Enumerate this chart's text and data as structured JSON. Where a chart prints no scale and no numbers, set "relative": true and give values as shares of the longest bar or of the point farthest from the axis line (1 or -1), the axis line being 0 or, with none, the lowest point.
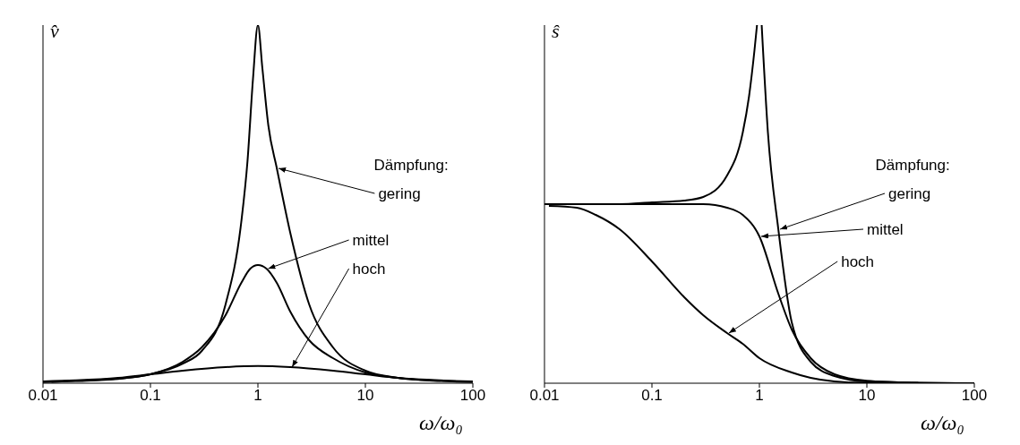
{
  "chart_data": [
    {
      "type": "line",
      "relative": true,
      "log": "x",
      "xlim": [
        0.01,
        100
      ],
      "xticks": [
        0.01,
        0.1,
        1,
        10,
        100
      ],
      "tick_labels": "x",
      "ylabel": "v̂",
      "xlabel": "ω/ω₀",
      "marker": "none",
      "line_style": "solid",
      "annotations": [
        "Dämpfung:",
        {
          "text": "gering",
          "x": 1.5,
          "y": 0.6
        },
        {
          "text": "mittel",
          "x": 1.2,
          "y": 0.32
        },
        {
          "text": "hoch",
          "x": 2,
          "y": 0.045
        }
      ],
      "series": [
        {
          "color": "#000000",
          "x": [
            0.01,
            0.02,
            0.05,
            0.1,
            0.2,
            0.3,
            0.5,
            0.7,
            0.8,
            0.9,
            1,
            1.1,
            1.25,
            1.5,
            2,
            3,
            5,
            10,
            20,
            50,
            100
          ],
          "values": [
            0.003,
            0.006,
            0.012,
            0.025,
            0.055,
            0.09,
            0.22,
            0.45,
            0.62,
            0.85,
            1,
            0.88,
            0.72,
            0.6,
            0.42,
            0.22,
            0.1,
            0.035,
            0.015,
            0.006,
            0.003
          ]
        },
        {
          "color": "#000000",
          "x": [
            0.012,
            0.02,
            0.05,
            0.1,
            0.2,
            0.3,
            0.5,
            0.7,
            0.85,
            1,
            1.2,
            1.5,
            2,
            3,
            5,
            10,
            20,
            50
          ],
          "values": [
            0.004,
            0.007,
            0.013,
            0.025,
            0.06,
            0.1,
            0.19,
            0.28,
            0.32,
            0.33,
            0.32,
            0.28,
            0.2,
            0.12,
            0.07,
            0.03,
            0.015,
            0.007
          ]
        },
        {
          "color": "#000000",
          "x": [
            0.01,
            0.02,
            0.05,
            0.1,
            0.2,
            0.5,
            1,
            2,
            5,
            10,
            20,
            50,
            100
          ],
          "values": [
            0.005,
            0.008,
            0.015,
            0.025,
            0.035,
            0.045,
            0.048,
            0.045,
            0.035,
            0.025,
            0.015,
            0.008,
            0.005
          ]
        }
      ]
    },
    {
      "type": "line",
      "relative": true,
      "log": "x",
      "xlim": [
        0.01,
        100
      ],
      "xticks": [
        0.01,
        0.1,
        1,
        10,
        100
      ],
      "tick_labels": "x",
      "ylabel": "ŝ",
      "xlabel": "ω/ω₀",
      "marker": "none",
      "line_style": "solid",
      "annotations": [
        "Dämpfung:",
        {
          "text": "gering",
          "x": 1.5,
          "y": 0.43
        },
        {
          "text": "mittel",
          "x": 1,
          "y": 0.41
        },
        {
          "text": "hoch",
          "x": 0.5,
          "y": 0.14
        }
      ],
      "series": [
        {
          "color": "#000000",
          "x": [
            0.01,
            0.05,
            0.1,
            0.2,
            0.3,
            0.5,
            0.7,
            0.8,
            0.9,
            0.95,
            1,
            1.05,
            1.2,
            1.5,
            2,
            3,
            5,
            10,
            100
          ],
          "values": [
            0.5,
            0.5,
            0.505,
            0.51,
            0.52,
            0.58,
            0.7,
            0.8,
            0.93,
            1,
            null,
            1,
            0.7,
            0.43,
            0.17,
            0.06,
            0.02,
            0.005,
            0
          ]
        },
        {
          "color": "#000000",
          "x": [
            0.01,
            0.1,
            0.3,
            0.5,
            0.7,
            1,
            1.5,
            2,
            3,
            5,
            10,
            30
          ],
          "values": [
            0.5,
            0.5,
            0.5,
            0.49,
            0.47,
            0.41,
            0.25,
            0.15,
            0.07,
            0.025,
            0.007,
            0.001
          ]
        },
        {
          "color": "#000000",
          "x": [
            0.011,
            0.02,
            0.03,
            0.05,
            0.1,
            0.2,
            0.3,
            0.5,
            0.7,
            1,
            2,
            3,
            5,
            10,
            100
          ],
          "values": [
            0.495,
            0.49,
            0.47,
            0.43,
            0.34,
            0.24,
            0.19,
            0.14,
            0.11,
            0.07,
            0.03,
            0.015,
            0.005,
            0.001,
            0
          ]
        }
      ]
    }
  ]
}
